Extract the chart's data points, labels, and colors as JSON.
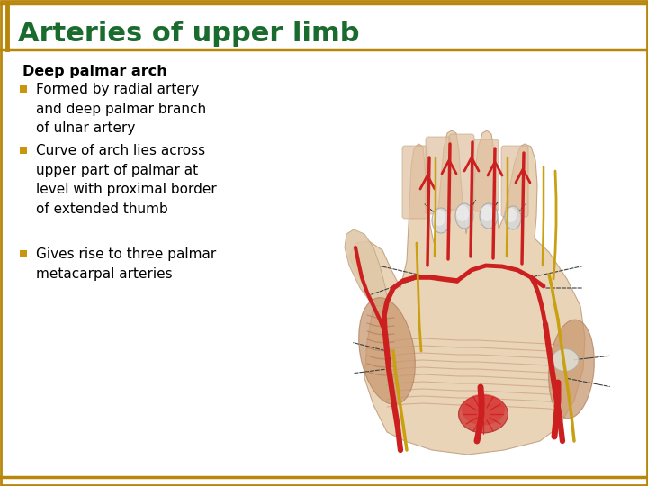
{
  "title": "Arteries of upper limb",
  "title_color": "#1a6b2e",
  "title_fontsize": 22,
  "subtitle": "Deep palmar arch",
  "subtitle_fontsize": 11.5,
  "subtitle_color": "#000000",
  "bullet_color": "#c8960c",
  "bullet_text_color": "#000000",
  "bullet_fontsize": 11,
  "bullets": [
    "Formed by radial artery\nand deep palmar branch\nof ulnar artery",
    "Curve of arch lies across\nupper part of palmar at\nlevel with proximal border\nof extended thumb",
    "Gives rise to three palmar\nmetacarpal arteries"
  ],
  "bg_color": "#ffffff",
  "border_color": "#b8860b",
  "border_linewidth": 2.0,
  "title_bar_color": "#b8860b",
  "left_bar_color": "#b8860b"
}
